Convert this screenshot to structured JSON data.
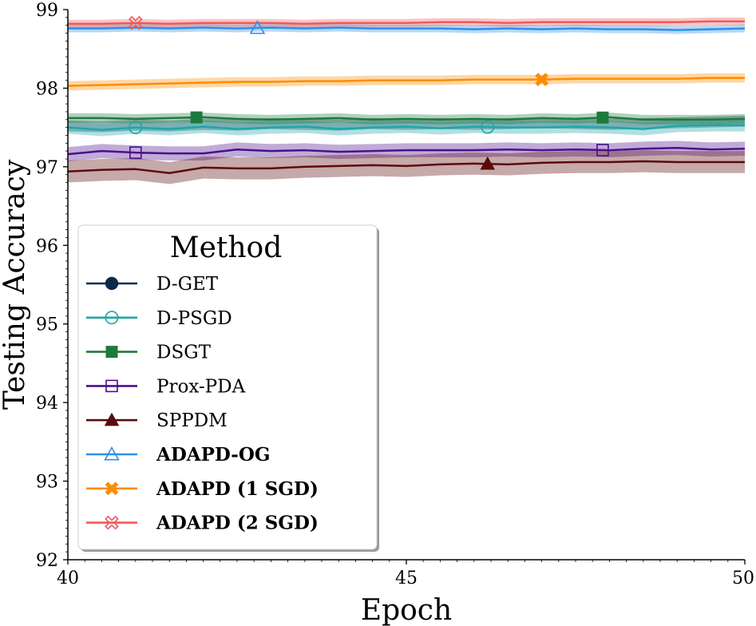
{
  "chart_data": {
    "type": "line",
    "xlabel": "Epoch",
    "ylabel": "Testing Accuracy",
    "xlim": [
      40,
      50
    ],
    "ylim": [
      92,
      99
    ],
    "xticks": [
      "40",
      "45",
      "50"
    ],
    "yticks": [
      "92",
      "93",
      "94",
      "95",
      "96",
      "97",
      "98",
      "99"
    ],
    "x": [
      40,
      40.5,
      41,
      41.5,
      42,
      42.5,
      43,
      43.5,
      44,
      44.5,
      45,
      45.5,
      46,
      46.5,
      47,
      47.5,
      48,
      48.5,
      49,
      49.5,
      50
    ],
    "legend": {
      "title": "Method",
      "placement": "center-left"
    },
    "series": [
      {
        "name": "D-GET",
        "color": "#0b2a4a",
        "marker": "circle-filled",
        "bold": false,
        "values": [
          97.52,
          97.51,
          97.53,
          97.52,
          97.54,
          97.53,
          97.55,
          97.54,
          97.53,
          97.55,
          97.54,
          97.55,
          97.54,
          97.55,
          97.56,
          97.55,
          97.54,
          97.55,
          97.56,
          97.57,
          97.58
        ],
        "band": 0.07,
        "marker_x": [],
        "show_line": false
      },
      {
        "name": "D-PSGD",
        "color": "#1fa6a6",
        "marker": "circle-open",
        "bold": false,
        "values": [
          97.5,
          97.47,
          97.5,
          97.48,
          97.51,
          97.48,
          97.5,
          97.51,
          97.48,
          97.5,
          97.51,
          97.49,
          97.51,
          97.5,
          97.5,
          97.51,
          97.5,
          97.48,
          97.52,
          97.53,
          97.53
        ],
        "band": 0.08,
        "marker_x": [
          41.0,
          46.2
        ],
        "show_line": true
      },
      {
        "name": "DSGT",
        "color": "#1e7a3c",
        "marker": "square-filled",
        "bold": false,
        "values": [
          97.62,
          97.62,
          97.61,
          97.62,
          97.63,
          97.61,
          97.6,
          97.61,
          97.62,
          97.6,
          97.61,
          97.6,
          97.61,
          97.6,
          97.62,
          97.61,
          97.63,
          97.6,
          97.6,
          97.6,
          97.61
        ],
        "band": 0.06,
        "marker_x": [
          41.9,
          47.9
        ],
        "show_line": true
      },
      {
        "name": "Prox-PDA",
        "color": "#4b0f8c",
        "marker": "square-open",
        "bold": false,
        "values": [
          97.16,
          97.2,
          97.18,
          97.17,
          97.17,
          97.22,
          97.2,
          97.21,
          97.19,
          97.2,
          97.21,
          97.21,
          97.21,
          97.22,
          97.21,
          97.22,
          97.21,
          97.23,
          97.24,
          97.22,
          97.23
        ],
        "band": 0.09,
        "marker_x": [
          41.0,
          47.9
        ],
        "show_line": true
      },
      {
        "name": "SPPDM",
        "color": "#5c0a0a",
        "marker": "triangle-filled",
        "bold": false,
        "values": [
          96.94,
          96.96,
          96.97,
          96.92,
          96.99,
          96.98,
          96.98,
          97.0,
          97.01,
          97.02,
          97.01,
          97.03,
          97.04,
          97.03,
          97.05,
          97.06,
          97.06,
          97.07,
          97.06,
          97.06,
          97.06
        ],
        "band": 0.14,
        "marker_x": [
          46.2
        ],
        "show_line": true
      },
      {
        "name": "ADAPD-OG",
        "color": "#2f8fe8",
        "marker": "triangle-open",
        "bold": true,
        "values": [
          98.76,
          98.76,
          98.77,
          98.76,
          98.77,
          98.76,
          98.77,
          98.76,
          98.77,
          98.76,
          98.76,
          98.76,
          98.75,
          98.76,
          98.75,
          98.76,
          98.75,
          98.75,
          98.74,
          98.75,
          98.76
        ],
        "band": 0.05,
        "marker_x": [
          42.8
        ],
        "show_line": true
      },
      {
        "name": "ADAPD (1 SGD)",
        "color": "#ff8c00",
        "marker": "x-filled",
        "bold": true,
        "values": [
          98.03,
          98.04,
          98.05,
          98.06,
          98.07,
          98.08,
          98.08,
          98.09,
          98.09,
          98.1,
          98.1,
          98.1,
          98.11,
          98.11,
          98.11,
          98.12,
          98.12,
          98.12,
          98.12,
          98.13,
          98.13
        ],
        "band": 0.06,
        "marker_x": [
          47.0
        ],
        "show_line": true
      },
      {
        "name": "ADAPD (2 SGD)",
        "color": "#f05a5a",
        "marker": "x-open",
        "bold": true,
        "values": [
          98.82,
          98.82,
          98.83,
          98.82,
          98.83,
          98.83,
          98.83,
          98.82,
          98.83,
          98.83,
          98.83,
          98.84,
          98.84,
          98.83,
          98.84,
          98.84,
          98.84,
          98.84,
          98.84,
          98.85,
          98.85
        ],
        "band": 0.05,
        "marker_x": [
          41.0
        ],
        "show_line": true
      }
    ]
  }
}
